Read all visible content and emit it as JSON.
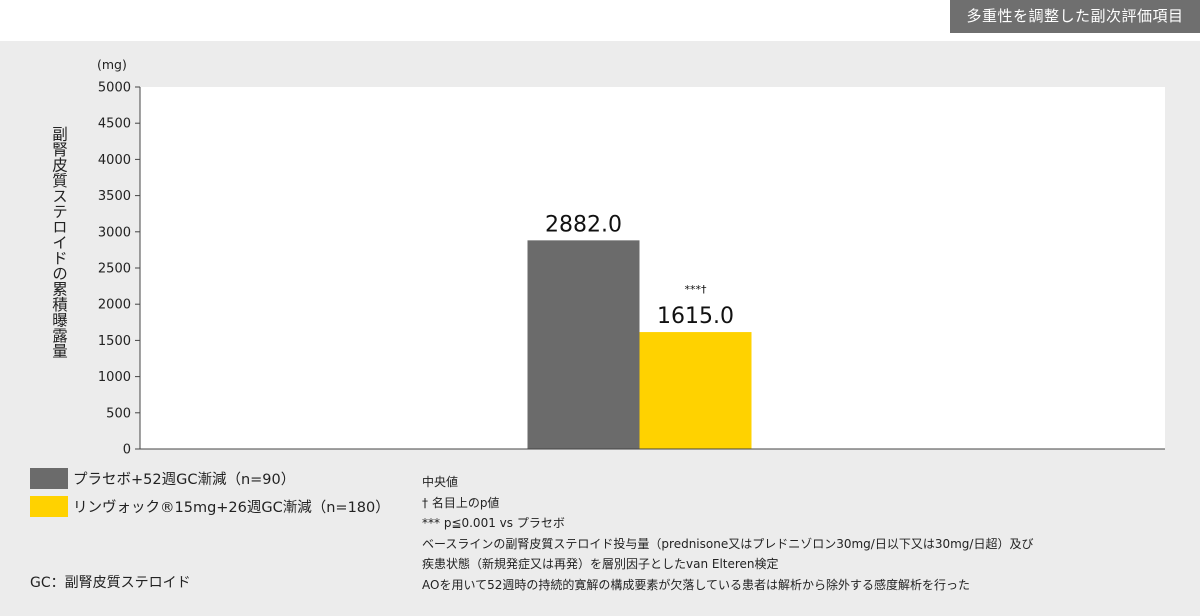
{
  "header": {
    "badge": "多重性を調整した副次評価項目"
  },
  "chart_data": {
    "type": "bar",
    "ylabel": "副腎皮質ステロイドの累積曝露量",
    "unit": "(mg)",
    "ylim": [
      0,
      5000
    ],
    "yticks": [
      0,
      500,
      1000,
      1500,
      2000,
      2500,
      3000,
      3500,
      4000,
      4500,
      5000
    ],
    "series": [
      {
        "name": "プラセボ+52週GC漸減（n=90）",
        "value": 2882.0,
        "label": "2882.0",
        "color": "#6b6b6b",
        "annotation": ""
      },
      {
        "name": "リンヴォック®15mg+26週GC漸減（n=180）",
        "value": 1615.0,
        "label": "1615.0",
        "color": "#ffd200",
        "annotation": "***†"
      }
    ],
    "grid": false,
    "legend_position": "bottom-left"
  },
  "footnote_gc": "GC：副腎皮質ステロイド",
  "notes": [
    "中央値",
    "† 名目上のp値",
    "*** p≦0.001 vs プラセボ",
    "ベースラインの副腎皮質ステロイド投与量（prednisone又はプレドニゾロン30mg/日以下又は30mg/日超）及び",
    "疾患状態（新規発症又は再発）を層別因子としたvan Elteren検定",
    "AOを用いて52週時の持続的寛解の構成要素が欠落している患者は解析から除外する感度解析を行った"
  ]
}
